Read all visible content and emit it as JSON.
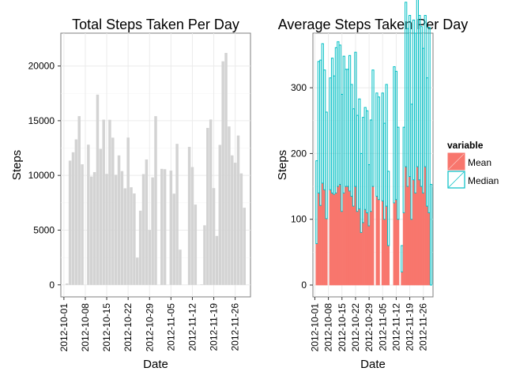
{
  "colors": {
    "total_bar": "#d3d3d3",
    "mean": "#f8766d",
    "median": "#00bfc4",
    "grid": "#ebebeb",
    "panel_border": "#7f7f7f"
  },
  "legend": {
    "title": "variable",
    "items": [
      {
        "label": "Mean",
        "color": "#f8766d"
      },
      {
        "label": "Median",
        "color": "#00bfc4"
      }
    ]
  },
  "chart_data": [
    {
      "type": "bar",
      "title": "Total Steps Taken Per Day",
      "xlabel": "Date",
      "ylabel": "Steps",
      "xlim": [
        "2012-09-30",
        "2012-12-01"
      ],
      "ylim": [
        -1100,
        23000
      ],
      "yticks": [
        0,
        5000,
        10000,
        15000,
        20000
      ],
      "xticks": [
        "2012-10-01",
        "2012-10-08",
        "2012-10-15",
        "2012-10-22",
        "2012-10-29",
        "2012-11-05",
        "2012-11-12",
        "2012-11-19",
        "2012-11-26"
      ],
      "grid": true,
      "series": [
        {
          "x": [
            "2012-10-01",
            "2012-10-02",
            "2012-10-03",
            "2012-10-04",
            "2012-10-05",
            "2012-10-06",
            "2012-10-07",
            "2012-10-08",
            "2012-10-09",
            "2012-10-10",
            "2012-10-11",
            "2012-10-12",
            "2012-10-13",
            "2012-10-14",
            "2012-10-15",
            "2012-10-16",
            "2012-10-17",
            "2012-10-18",
            "2012-10-19",
            "2012-10-20",
            "2012-10-21",
            "2012-10-22",
            "2012-10-23",
            "2012-10-24",
            "2012-10-25",
            "2012-10-26",
            "2012-10-27",
            "2012-10-28",
            "2012-10-29",
            "2012-10-30",
            "2012-10-31",
            "2012-11-01",
            "2012-11-02",
            "2012-11-03",
            "2012-11-04",
            "2012-11-05",
            "2012-11-06",
            "2012-11-07",
            "2012-11-08",
            "2012-11-09",
            "2012-11-10",
            "2012-11-11",
            "2012-11-12",
            "2012-11-13",
            "2012-11-14",
            "2012-11-15",
            "2012-11-16",
            "2012-11-17",
            "2012-11-18",
            "2012-11-19",
            "2012-11-20",
            "2012-11-21",
            "2012-11-22",
            "2012-11-23",
            "2012-11-24",
            "2012-11-25",
            "2012-11-26",
            "2012-11-27",
            "2012-11-28",
            "2012-11-29",
            "2012-11-30"
          ],
          "values": [
            0,
            126,
            11352,
            12116,
            13294,
            15420,
            11015,
            0,
            12811,
            9900,
            10304,
            17382,
            12426,
            15098,
            10139,
            15084,
            13452,
            10056,
            11829,
            10395,
            8821,
            13460,
            8918,
            8355,
            2492,
            6778,
            10119,
            11458,
            5018,
            9819,
            15414,
            0,
            10600,
            10571,
            0,
            10439,
            8334,
            12883,
            3219,
            0,
            0,
            12608,
            10765,
            7336,
            0,
            41,
            5441,
            14339,
            15110,
            8841,
            4472,
            12787,
            20427,
            21194,
            14478,
            11834,
            11162,
            13646,
            10183,
            7047,
            0
          ]
        }
      ]
    },
    {
      "type": "bar",
      "title": "Average Steps Taken Per Day",
      "xlabel": "Date",
      "ylabel": "Steps",
      "xlim": [
        "2012-09-30",
        "2012-12-01"
      ],
      "ylim": [
        -18,
        383
      ],
      "yticks": [
        0,
        100,
        200,
        300
      ],
      "xticks": [
        "2012-10-01",
        "2012-10-08",
        "2012-10-15",
        "2012-10-22",
        "2012-10-29",
        "2012-11-05",
        "2012-11-12",
        "2012-11-19",
        "2012-11-26"
      ],
      "grid": true,
      "x": [
        "2012-10-01",
        "2012-10-02",
        "2012-10-03",
        "2012-10-04",
        "2012-10-05",
        "2012-10-06",
        "2012-10-07",
        "2012-10-08",
        "2012-10-09",
        "2012-10-10",
        "2012-10-11",
        "2012-10-12",
        "2012-10-13",
        "2012-10-14",
        "2012-10-15",
        "2012-10-16",
        "2012-10-17",
        "2012-10-18",
        "2012-10-19",
        "2012-10-20",
        "2012-10-21",
        "2012-10-22",
        "2012-10-23",
        "2012-10-24",
        "2012-10-25",
        "2012-10-26",
        "2012-10-27",
        "2012-10-28",
        "2012-10-29",
        "2012-10-30",
        "2012-10-31",
        "2012-11-01",
        "2012-11-02",
        "2012-11-03",
        "2012-11-04",
        "2012-11-05",
        "2012-11-06",
        "2012-11-07",
        "2012-11-08",
        "2012-11-09",
        "2012-11-10",
        "2012-11-11",
        "2012-11-12",
        "2012-11-13",
        "2012-11-14",
        "2012-11-15",
        "2012-11-16",
        "2012-11-17",
        "2012-11-18",
        "2012-11-19",
        "2012-11-20",
        "2012-11-21",
        "2012-11-22",
        "2012-11-23",
        "2012-11-24",
        "2012-11-25",
        "2012-11-26",
        "2012-11-27",
        "2012-11-28",
        "2012-11-29",
        "2012-11-30"
      ],
      "series": [
        {
          "name": "Mean",
          "values": [
            0,
            63,
            140,
            121,
            155,
            145,
            101,
            0,
            145,
            140,
            138,
            140,
            150,
            153,
            112,
            140,
            150,
            150,
            143,
            135,
            120,
            150,
            112,
            116,
            80,
            95,
            115,
            110,
            90,
            112,
            150,
            0,
            135,
            130,
            0,
            128,
            100,
            120,
            60,
            0,
            0,
            125,
            130,
            100,
            0,
            20,
            110,
            180,
            150,
            165,
            100,
            160,
            140,
            180,
            160,
            150,
            140,
            180,
            120,
            110,
            0
          ]
        },
        {
          "name": "Median",
          "values": [
            0,
            126,
            200,
            221,
            212,
            182,
            162,
            0,
            170,
            205,
            180,
            221,
            220,
            212,
            178,
            208,
            178,
            178,
            206,
            170,
            148,
            204,
            146,
            167,
            120,
            160,
            155,
            155,
            93,
            139,
            177,
            0,
            157,
            156,
            0,
            164,
            146,
            185,
            113,
            0,
            0,
            207,
            195,
            140,
            0,
            40,
            130,
            250,
            240,
            245,
            175,
            243,
            243,
            365,
            250,
            243,
            220,
            230,
            195,
            282,
            153
          ]
        }
      ]
    }
  ]
}
